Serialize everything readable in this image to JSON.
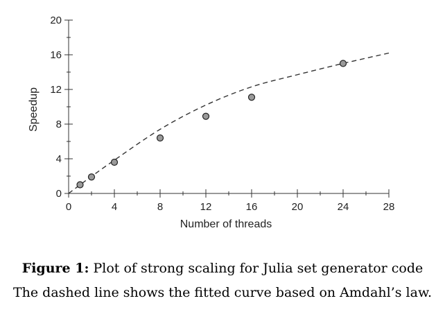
{
  "chart_data": {
    "type": "scatter",
    "xlabel": "Number of threads",
    "ylabel": "Speedup",
    "xlim": [
      0,
      28
    ],
    "ylim": [
      0,
      20
    ],
    "x_ticks": [
      0,
      4,
      8,
      12,
      16,
      20,
      24,
      28
    ],
    "y_ticks": [
      0,
      4,
      8,
      12,
      16,
      20
    ],
    "x_minor_step": 2,
    "y_minor_step": 2,
    "grid": false,
    "series": [
      {
        "kind": "points",
        "marker_color": "#9a9a9a",
        "x": [
          1,
          2,
          4,
          8,
          12,
          16,
          24
        ],
        "y": [
          1.0,
          1.9,
          3.6,
          6.4,
          8.9,
          11.1,
          15.0
        ]
      },
      {
        "kind": "dashed-line",
        "line_color": "#333333",
        "x": [
          0,
          1,
          2,
          4,
          8,
          12,
          16,
          20,
          24,
          28
        ],
        "y": [
          0,
          0.99,
          1.96,
          3.84,
          7.4,
          10.2,
          12.3,
          13.7,
          15.0,
          16.2
        ]
      }
    ]
  },
  "caption": {
    "label": "Figure 1:",
    "title": " Plot of strong scaling for Julia set generator code",
    "description": "The dashed line shows the fitted curve based on Amdahl’s law."
  },
  "colors": {
    "axis": "#333333",
    "marker_fill": "#9a9a9a",
    "marker_stroke": "#222222"
  }
}
